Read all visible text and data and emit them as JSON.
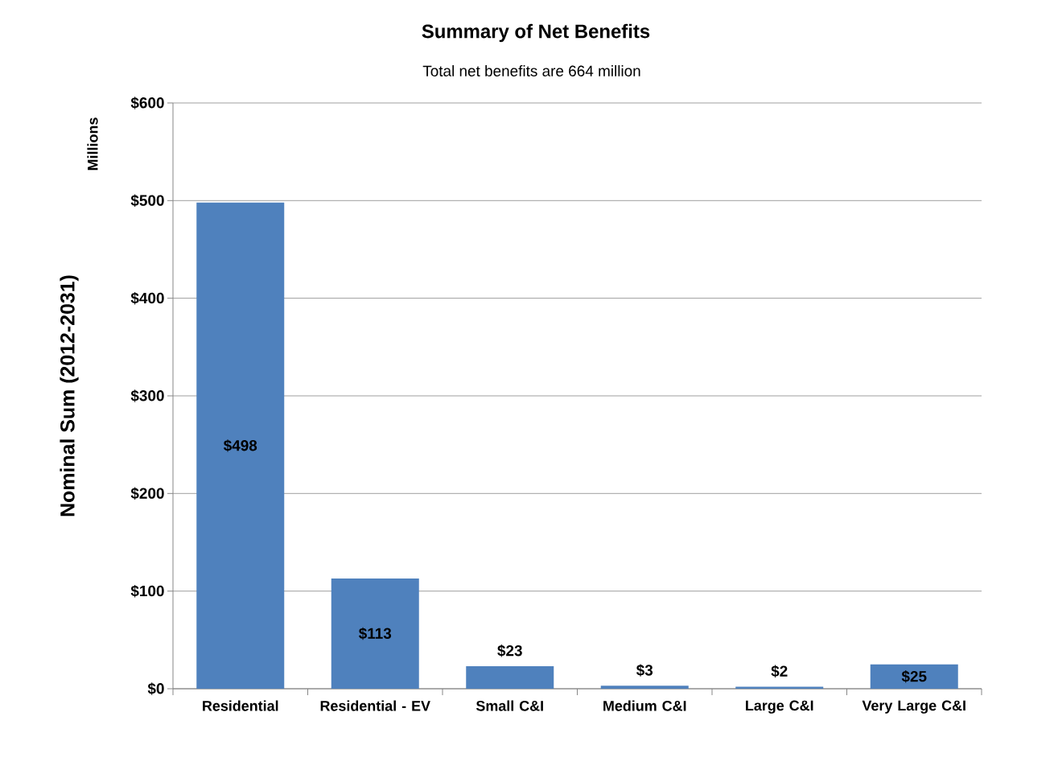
{
  "chart_data": {
    "type": "bar",
    "title": "Summary of Net Benefits",
    "subtitle": "Total net benefits are 664 million",
    "ylabel": "Nominal Sum (2012-2031)",
    "annotations": [
      "Millions"
    ],
    "categories": [
      "Residential",
      "Residential - EV",
      "Small C&I",
      "Medium C&I",
      "Large C&I",
      "Very Large C&I"
    ],
    "values": [
      498,
      113,
      23,
      3,
      2,
      25
    ],
    "value_labels": [
      "$498",
      "$113",
      "$23",
      "$3",
      "$2",
      "$25"
    ],
    "color": "#4f81bd",
    "ylim": [
      0,
      600
    ],
    "yticks": [
      {
        "value": 0,
        "label": "$0"
      },
      {
        "value": 100,
        "label": "$100"
      },
      {
        "value": 200,
        "label": "$200"
      },
      {
        "value": 300,
        "label": "$300"
      },
      {
        "value": 400,
        "label": "$400"
      },
      {
        "value": 500,
        "label": "$500"
      },
      {
        "value": 600,
        "label": "$600"
      }
    ],
    "grid": "y"
  }
}
